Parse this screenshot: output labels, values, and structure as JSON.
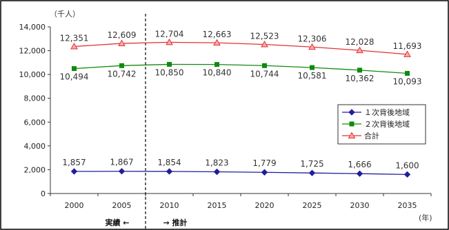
{
  "chart_data": {
    "type": "line",
    "y_unit": "（千人）",
    "x_unit": "(年)",
    "x": [
      2000,
      2005,
      2010,
      2015,
      2020,
      2025,
      2030,
      2035
    ],
    "x_labels": [
      "2000",
      "2005",
      "2010",
      "2015",
      "2020",
      "2025",
      "2030",
      "2035"
    ],
    "ylim": [
      0,
      14000
    ],
    "y_ticks": [
      0,
      2000,
      4000,
      6000,
      8000,
      10000,
      12000,
      14000
    ],
    "y_tick_labels": [
      "0",
      "2,000",
      "4,000",
      "6,000",
      "8,000",
      "10,000",
      "12,000",
      "14,000"
    ],
    "grid": false,
    "legend_position": "right",
    "series": [
      {
        "name": "１次背後地域",
        "color": "#1f1f9a",
        "marker": "diamond",
        "values": [
          1857,
          1867,
          1854,
          1823,
          1779,
          1725,
          1666,
          1600
        ],
        "labels": [
          "1,857",
          "1,867",
          "1,854",
          "1,823",
          "1,779",
          "1,725",
          "1,666",
          "1,600"
        ]
      },
      {
        "name": "２次背後地域",
        "color": "#0f8a0f",
        "marker": "square",
        "values": [
          10494,
          10742,
          10850,
          10840,
          10744,
          10581,
          10362,
          10093
        ],
        "labels": [
          "10,494",
          "10,742",
          "10,850",
          "10,840",
          "10,744",
          "10,581",
          "10,362",
          "10,093"
        ]
      },
      {
        "name": "合計",
        "color": "#e23232",
        "marker": "triangle",
        "values": [
          12351,
          12609,
          12704,
          12663,
          12523,
          12306,
          12028,
          11693
        ],
        "labels": [
          "12,351",
          "12,609",
          "12,704",
          "12,663",
          "12,523",
          "12,306",
          "12,028",
          "11,693"
        ]
      }
    ],
    "divider_after": 2005,
    "period_labels": {
      "actual": "実績 ←",
      "projected": "→ 推計"
    }
  }
}
